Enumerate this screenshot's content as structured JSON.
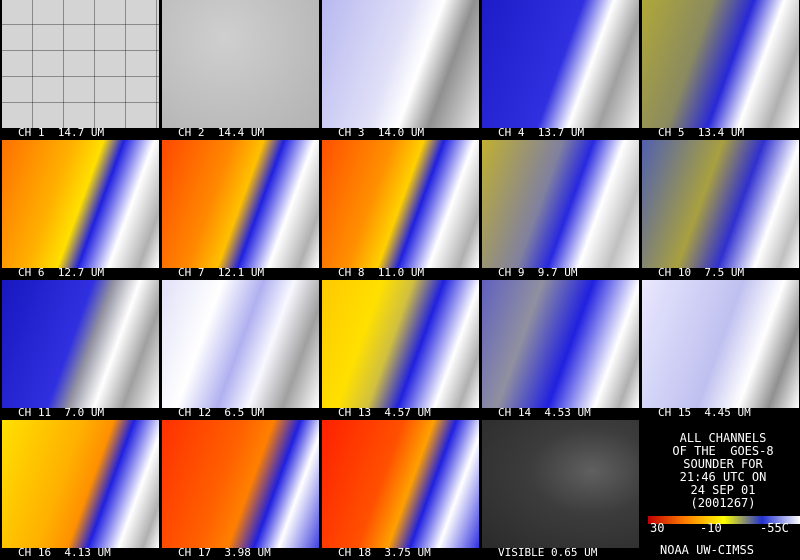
{
  "panels": [
    "CH 1  14.7 UM",
    "CH 2  14.4 UM",
    "CH 3  14.0 UM",
    "CH 4  13.7 UM",
    "CH 5  13.4 UM",
    "CH 6  12.7 UM",
    "CH 7  12.1 UM",
    "CH 8  11.0 UM",
    "CH 9  9.7 UM",
    "CH 10  7.5 UM",
    "CH 11  7.0 UM",
    "CH 12  6.5 UM",
    "CH 13  4.57 UM",
    "CH 14  4.53 UM",
    "CH 15  4.45 UM",
    "CH 16  4.13 UM",
    "CH 17  3.98 UM",
    "CH 18  3.75 UM",
    "VISIBLE 0.65 UM"
  ],
  "info": {
    "lines": [
      "ALL CHANNELS",
      "OF THE  GOES-8",
      "SOUNDER FOR",
      "21:46 UTC ON",
      "24 SEP 01",
      "(2001267)"
    ],
    "scale": [
      "30",
      "-10",
      "-55C"
    ],
    "credit": "NOAA UW-CIMSS"
  }
}
